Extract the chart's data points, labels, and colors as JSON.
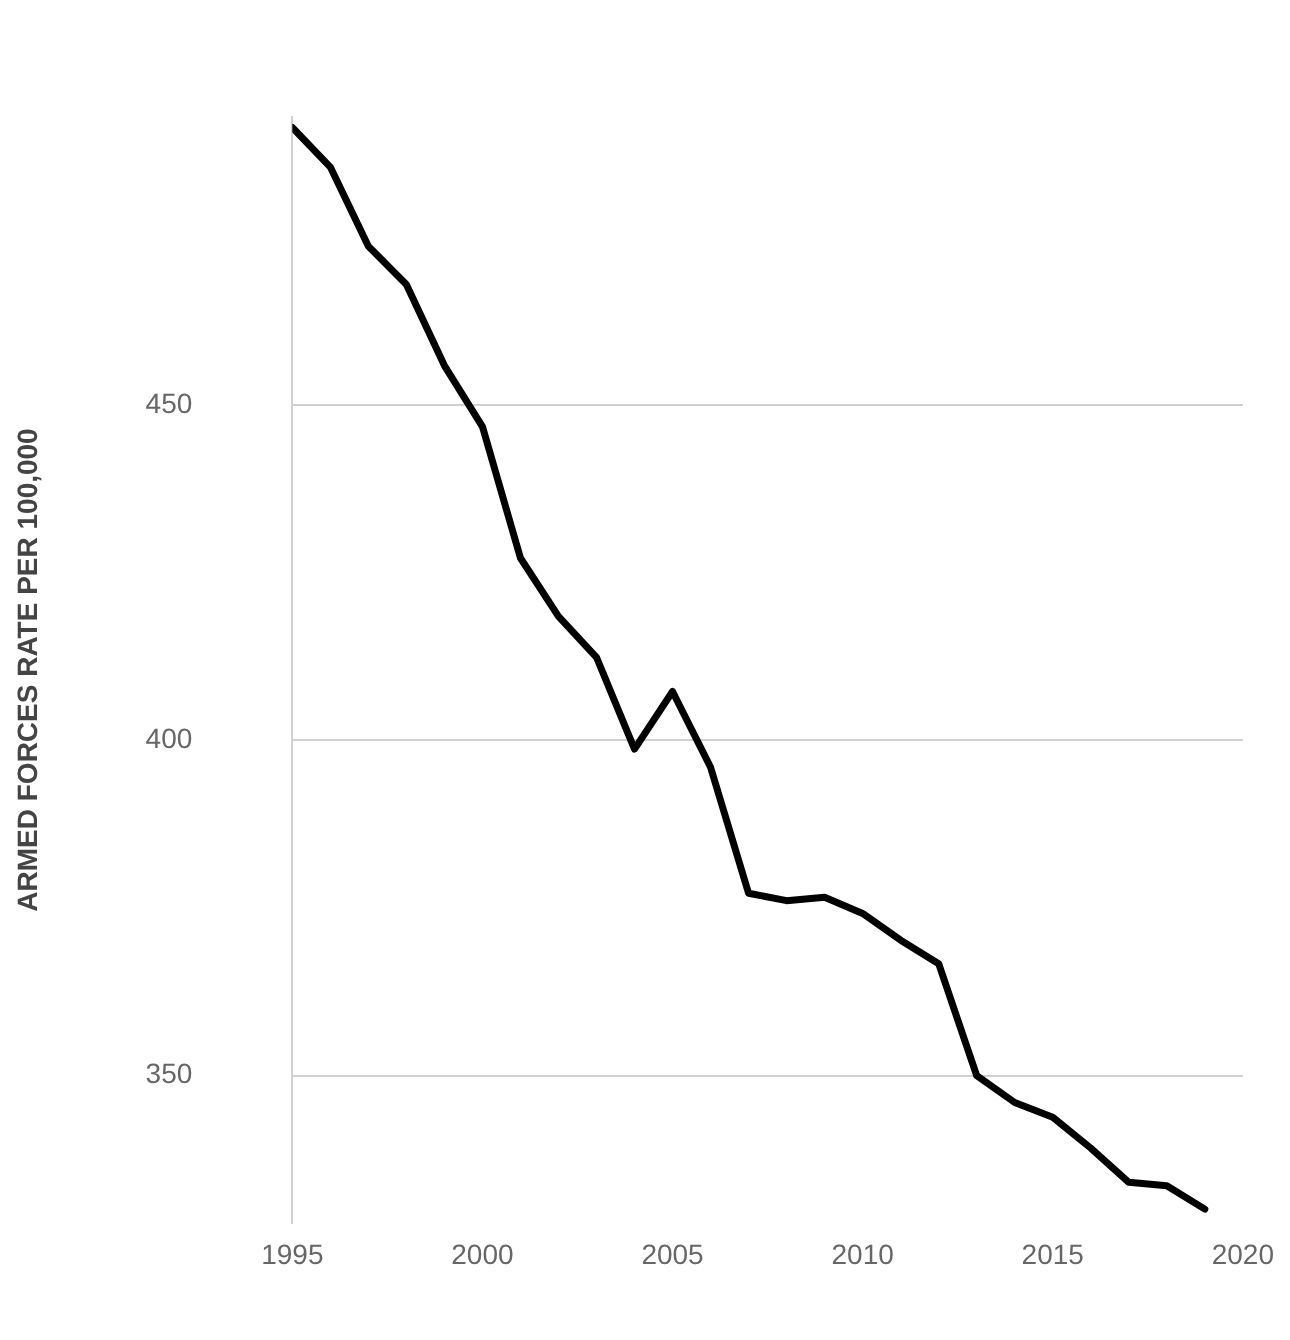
{
  "chart_data": {
    "type": "line",
    "ylabel": "ARMED FORCES RATE PER 100,000",
    "x": [
      1995,
      1996,
      1997,
      1998,
      1999,
      2000,
      2001,
      2002,
      2003,
      2004,
      2005,
      2006,
      2007,
      2008,
      2009,
      2010,
      2011,
      2012,
      2013,
      2014,
      2015,
      2016,
      2017,
      2018,
      2019
    ],
    "series": [
      {
        "color": "#000000",
        "values": [
          491.4,
          485.5,
          473.7,
          468,
          455.9,
          446.8,
          427.2,
          418.5,
          412.4,
          398.7,
          407.3,
          396,
          377.2,
          376.1,
          376.6,
          374.2,
          370.2,
          366.7,
          350,
          346,
          343.8,
          339.2,
          334.1,
          333.6,
          330.1
        ]
      }
    ],
    "xlim": [
      1995,
      2020
    ],
    "xticks": [
      1995,
      2000,
      2005,
      2010,
      2015,
      2020
    ],
    "ylim": [
      328,
      493
    ],
    "yticks": [
      350,
      400,
      450
    ],
    "grid": "y",
    "legend": false,
    "marker": "none",
    "line_style": "solid"
  }
}
